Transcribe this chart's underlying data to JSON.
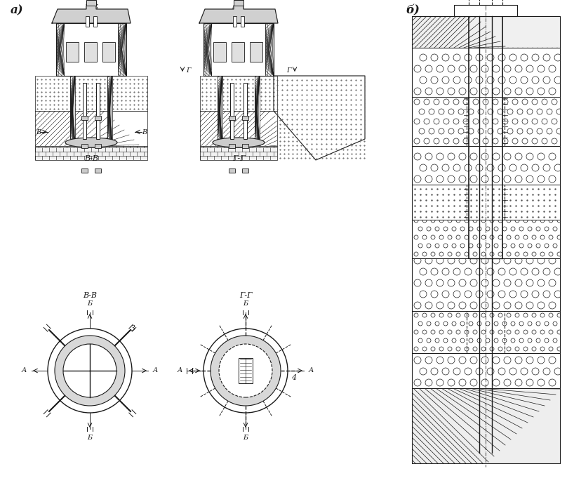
{
  "bg_color": "#ffffff",
  "line_color": "#1a1a1a",
  "label_a": "а)",
  "label_b": "б)",
  "section_bb": "Б-Б",
  "section_aa": "А-А",
  "section_vv": "В-В",
  "section_gg": "Г-Г",
  "label_3": "3",
  "label_4": "4"
}
